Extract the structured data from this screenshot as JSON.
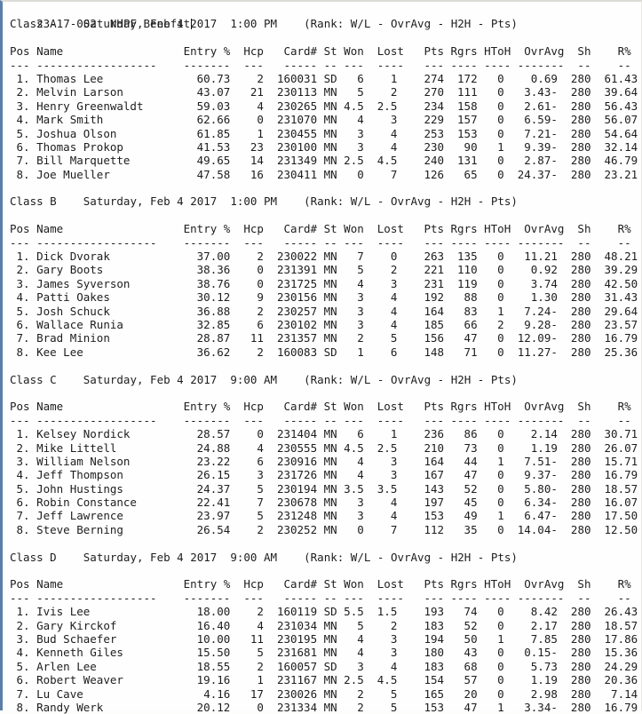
{
  "title": {
    "code": "23-17-002",
    "event": "NHPF Benefit"
  },
  "rank_note": "(Rank: W/L - OvrAvg - H2H - Pts)",
  "columns": {
    "pos": "Pos",
    "name": "Name",
    "entry": "Entry %",
    "hcp": "Hcp",
    "card": "Card#",
    "st": "St",
    "won": "Won",
    "lost": "Lost",
    "pts": "Pts",
    "rgrs": "Rgrs",
    "htoh": "HToH",
    "ovravg": "OvrAvg",
    "sh": "Sh",
    "r": "R%"
  },
  "dashes": {
    "pos": "---",
    "name": "------------------",
    "entry": "-------",
    "hcp": "---",
    "card": "-----",
    "st": "--",
    "won": "---",
    "lost": "----",
    "pts": "---",
    "rgrs": "----",
    "htoh": "----",
    "ovravg": "-------",
    "sh": "--",
    "r": "--"
  },
  "sections": [
    {
      "class_label": "Class A",
      "schedule": "Saturday, Feb 4 2017  1:00 PM",
      "rows": [
        {
          "pos": "1.",
          "name": "Thomas Lee",
          "entry": "60.73",
          "hcp": "2",
          "card": "160031",
          "st": "SD",
          "won": "6",
          "lost": "1",
          "pts": "274",
          "rgrs": "172",
          "htoh": "0",
          "ovravg": "0.69",
          "sh": "280",
          "r": "61.43"
        },
        {
          "pos": "2.",
          "name": "Melvin Larson",
          "entry": "43.07",
          "hcp": "21",
          "card": "230113",
          "st": "MN",
          "won": "5",
          "lost": "2",
          "pts": "270",
          "rgrs": "111",
          "htoh": "0",
          "ovravg": "3.43-",
          "sh": "280",
          "r": "39.64"
        },
        {
          "pos": "3.",
          "name": "Henry Greenwaldt",
          "entry": "59.03",
          "hcp": "4",
          "card": "230265",
          "st": "MN",
          "won": "4.5",
          "lost": "2.5",
          "pts": "234",
          "rgrs": "158",
          "htoh": "0",
          "ovravg": "2.61-",
          "sh": "280",
          "r": "56.43"
        },
        {
          "pos": "4.",
          "name": "Mark Smith",
          "entry": "62.66",
          "hcp": "0",
          "card": "231070",
          "st": "MN",
          "won": "4",
          "lost": "3",
          "pts": "229",
          "rgrs": "157",
          "htoh": "0",
          "ovravg": "6.59-",
          "sh": "280",
          "r": "56.07"
        },
        {
          "pos": "5.",
          "name": "Joshua Olson",
          "entry": "61.85",
          "hcp": "1",
          "card": "230455",
          "st": "MN",
          "won": "3",
          "lost": "4",
          "pts": "253",
          "rgrs": "153",
          "htoh": "0",
          "ovravg": "7.21-",
          "sh": "280",
          "r": "54.64"
        },
        {
          "pos": "6.",
          "name": "Thomas Prokop",
          "entry": "41.53",
          "hcp": "23",
          "card": "230100",
          "st": "MN",
          "won": "3",
          "lost": "4",
          "pts": "230",
          "rgrs": "90",
          "htoh": "1",
          "ovravg": "9.39-",
          "sh": "280",
          "r": "32.14"
        },
        {
          "pos": "7.",
          "name": "Bill Marquette",
          "entry": "49.65",
          "hcp": "14",
          "card": "231349",
          "st": "MN",
          "won": "2.5",
          "lost": "4.5",
          "pts": "240",
          "rgrs": "131",
          "htoh": "0",
          "ovravg": "2.87-",
          "sh": "280",
          "r": "46.79"
        },
        {
          "pos": "8.",
          "name": "Joe Mueller",
          "entry": "47.58",
          "hcp": "16",
          "card": "230411",
          "st": "MN",
          "won": "0",
          "lost": "7",
          "pts": "126",
          "rgrs": "65",
          "htoh": "0",
          "ovravg": "24.37-",
          "sh": "280",
          "r": "23.21"
        }
      ]
    },
    {
      "class_label": "Class B",
      "schedule": "Saturday, Feb 4 2017  1:00 PM",
      "rows": [
        {
          "pos": "1.",
          "name": "Dick Dvorak",
          "entry": "37.00",
          "hcp": "2",
          "card": "230022",
          "st": "MN",
          "won": "7",
          "lost": "0",
          "pts": "263",
          "rgrs": "135",
          "htoh": "0",
          "ovravg": "11.21",
          "sh": "280",
          "r": "48.21"
        },
        {
          "pos": "2.",
          "name": "Gary Boots",
          "entry": "38.36",
          "hcp": "0",
          "card": "231391",
          "st": "MN",
          "won": "5",
          "lost": "2",
          "pts": "221",
          "rgrs": "110",
          "htoh": "0",
          "ovravg": "0.92",
          "sh": "280",
          "r": "39.29"
        },
        {
          "pos": "3.",
          "name": "James Syverson",
          "entry": "38.76",
          "hcp": "0",
          "card": "231725",
          "st": "MN",
          "won": "4",
          "lost": "3",
          "pts": "231",
          "rgrs": "119",
          "htoh": "0",
          "ovravg": "3.74",
          "sh": "280",
          "r": "42.50"
        },
        {
          "pos": "4.",
          "name": "Patti Oakes",
          "entry": "30.12",
          "hcp": "9",
          "card": "230156",
          "st": "MN",
          "won": "3",
          "lost": "4",
          "pts": "192",
          "rgrs": "88",
          "htoh": "0",
          "ovravg": "1.30",
          "sh": "280",
          "r": "31.43"
        },
        {
          "pos": "5.",
          "name": "Josh Schuck",
          "entry": "36.88",
          "hcp": "2",
          "card": "230257",
          "st": "MN",
          "won": "3",
          "lost": "4",
          "pts": "164",
          "rgrs": "83",
          "htoh": "1",
          "ovravg": "7.24-",
          "sh": "280",
          "r": "29.64"
        },
        {
          "pos": "6.",
          "name": "Wallace Runia",
          "entry": "32.85",
          "hcp": "6",
          "card": "230102",
          "st": "MN",
          "won": "3",
          "lost": "4",
          "pts": "185",
          "rgrs": "66",
          "htoh": "2",
          "ovravg": "9.28-",
          "sh": "280",
          "r": "23.57"
        },
        {
          "pos": "7.",
          "name": "Brad Minion",
          "entry": "28.87",
          "hcp": "11",
          "card": "231357",
          "st": "MN",
          "won": "2",
          "lost": "5",
          "pts": "156",
          "rgrs": "47",
          "htoh": "0",
          "ovravg": "12.09-",
          "sh": "280",
          "r": "16.79"
        },
        {
          "pos": "8.",
          "name": "Kee Lee",
          "entry": "36.62",
          "hcp": "2",
          "card": "160083",
          "st": "SD",
          "won": "1",
          "lost": "6",
          "pts": "148",
          "rgrs": "71",
          "htoh": "0",
          "ovravg": "11.27-",
          "sh": "280",
          "r": "25.36"
        }
      ]
    },
    {
      "class_label": "Class C",
      "schedule": "Saturday, Feb 4 2017  9:00 AM",
      "rows": [
        {
          "pos": "1.",
          "name": "Kelsey Nordick",
          "entry": "28.57",
          "hcp": "0",
          "card": "231404",
          "st": "MN",
          "won": "6",
          "lost": "1",
          "pts": "236",
          "rgrs": "86",
          "htoh": "0",
          "ovravg": "2.14",
          "sh": "280",
          "r": "30.71"
        },
        {
          "pos": "2.",
          "name": "Mike Littell",
          "entry": "24.88",
          "hcp": "4",
          "card": "230555",
          "st": "MN",
          "won": "4.5",
          "lost": "2.5",
          "pts": "210",
          "rgrs": "73",
          "htoh": "0",
          "ovravg": "1.19",
          "sh": "280",
          "r": "26.07"
        },
        {
          "pos": "3.",
          "name": "William Nelson",
          "entry": "23.22",
          "hcp": "6",
          "card": "230916",
          "st": "MN",
          "won": "4",
          "lost": "3",
          "pts": "164",
          "rgrs": "44",
          "htoh": "1",
          "ovravg": "7.51-",
          "sh": "280",
          "r": "15.71"
        },
        {
          "pos": "4.",
          "name": "Jeff Thompson",
          "entry": "26.15",
          "hcp": "3",
          "card": "231726",
          "st": "MN",
          "won": "4",
          "lost": "3",
          "pts": "167",
          "rgrs": "47",
          "htoh": "0",
          "ovravg": "9.37-",
          "sh": "280",
          "r": "16.79"
        },
        {
          "pos": "5.",
          "name": "John Hustings",
          "entry": "24.37",
          "hcp": "5",
          "card": "230194",
          "st": "MN",
          "won": "3.5",
          "lost": "3.5",
          "pts": "143",
          "rgrs": "52",
          "htoh": "0",
          "ovravg": "5.80-",
          "sh": "280",
          "r": "18.57"
        },
        {
          "pos": "6.",
          "name": "Robin Constance",
          "entry": "22.41",
          "hcp": "7",
          "card": "230678",
          "st": "MN",
          "won": "3",
          "lost": "4",
          "pts": "197",
          "rgrs": "45",
          "htoh": "0",
          "ovravg": "6.34-",
          "sh": "280",
          "r": "16.07"
        },
        {
          "pos": "7.",
          "name": "Jeff Lawrence",
          "entry": "23.97",
          "hcp": "5",
          "card": "231248",
          "st": "MN",
          "won": "3",
          "lost": "4",
          "pts": "153",
          "rgrs": "49",
          "htoh": "1",
          "ovravg": "6.47-",
          "sh": "280",
          "r": "17.50"
        },
        {
          "pos": "8.",
          "name": "Steve Berning",
          "entry": "26.54",
          "hcp": "2",
          "card": "230252",
          "st": "MN",
          "won": "0",
          "lost": "7",
          "pts": "112",
          "rgrs": "35",
          "htoh": "0",
          "ovravg": "14.04-",
          "sh": "280",
          "r": "12.50"
        }
      ]
    },
    {
      "class_label": "Class D",
      "schedule": "Saturday, Feb 4 2017  9:00 AM",
      "rows": [
        {
          "pos": "1.",
          "name": "Ivis Lee",
          "entry": "18.00",
          "hcp": "2",
          "card": "160119",
          "st": "SD",
          "won": "5.5",
          "lost": "1.5",
          "pts": "193",
          "rgrs": "74",
          "htoh": "0",
          "ovravg": "8.42",
          "sh": "280",
          "r": "26.43"
        },
        {
          "pos": "2.",
          "name": "Gary Kirckof",
          "entry": "16.40",
          "hcp": "4",
          "card": "231034",
          "st": "MN",
          "won": "5",
          "lost": "2",
          "pts": "183",
          "rgrs": "52",
          "htoh": "0",
          "ovravg": "2.17",
          "sh": "280",
          "r": "18.57"
        },
        {
          "pos": "3.",
          "name": "Bud Schaefer",
          "entry": "10.00",
          "hcp": "11",
          "card": "230195",
          "st": "MN",
          "won": "4",
          "lost": "3",
          "pts": "194",
          "rgrs": "50",
          "htoh": "1",
          "ovravg": "7.85",
          "sh": "280",
          "r": "17.86"
        },
        {
          "pos": "4.",
          "name": "Kenneth Giles",
          "entry": "15.50",
          "hcp": "5",
          "card": "231681",
          "st": "MN",
          "won": "4",
          "lost": "3",
          "pts": "180",
          "rgrs": "43",
          "htoh": "0",
          "ovravg": "0.15-",
          "sh": "280",
          "r": "15.36"
        },
        {
          "pos": "5.",
          "name": "Arlen Lee",
          "entry": "18.55",
          "hcp": "2",
          "card": "160057",
          "st": "SD",
          "won": "3",
          "lost": "4",
          "pts": "183",
          "rgrs": "68",
          "htoh": "0",
          "ovravg": "5.73",
          "sh": "280",
          "r": "24.29"
        },
        {
          "pos": "6.",
          "name": "Robert Weaver",
          "entry": "19.16",
          "hcp": "1",
          "card": "231167",
          "st": "MN",
          "won": "2.5",
          "lost": "4.5",
          "pts": "154",
          "rgrs": "57",
          "htoh": "0",
          "ovravg": "1.19",
          "sh": "280",
          "r": "20.36"
        },
        {
          "pos": "7.",
          "name": "Lu Cave",
          "entry": "4.16",
          "hcp": "17",
          "card": "230026",
          "st": "MN",
          "won": "2",
          "lost": "5",
          "pts": "165",
          "rgrs": "20",
          "htoh": "0",
          "ovravg": "2.98",
          "sh": "280",
          "r": "7.14"
        },
        {
          "pos": "8.",
          "name": "Randy Werk",
          "entry": "20.12",
          "hcp": "0",
          "card": "231334",
          "st": "MN",
          "won": "2",
          "lost": "5",
          "pts": "153",
          "rgrs": "47",
          "htoh": "1",
          "ovravg": "3.34-",
          "sh": "280",
          "r": "16.79"
        }
      ]
    }
  ],
  "accent_colors": {
    "left_border": "#5b7ea9",
    "text": "#1d1d1d",
    "background": "#fffefe"
  }
}
